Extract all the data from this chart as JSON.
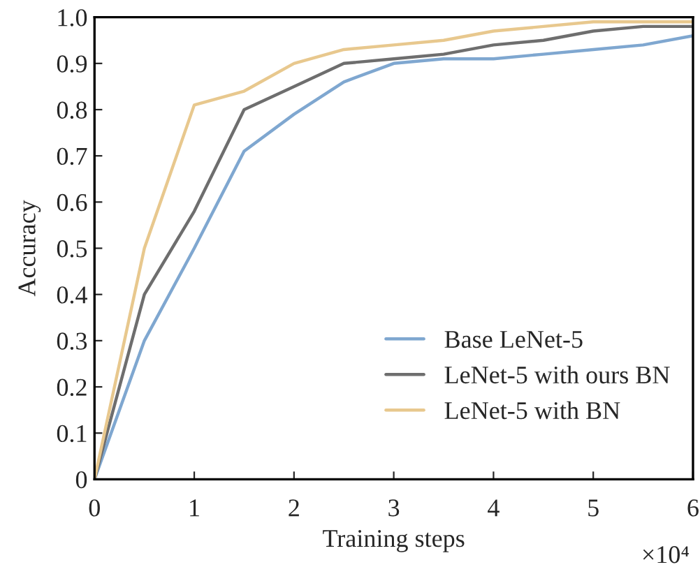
{
  "chart_data": {
    "type": "line",
    "xlabel": "Training steps",
    "ylabel": "Accuracy",
    "x": [
      0,
      0.5,
      1,
      1.5,
      2,
      2.5,
      3,
      3.5,
      4,
      4.5,
      5,
      5.5,
      6
    ],
    "series": [
      {
        "name": "Base LeNet-5",
        "color": "#7fa7d0",
        "values": [
          0,
          0.3,
          0.5,
          0.71,
          0.79,
          0.86,
          0.9,
          0.91,
          0.91,
          0.92,
          0.93,
          0.94,
          0.96
        ]
      },
      {
        "name": "LeNet-5 with ours BN",
        "color": "#6e6e6e",
        "values": [
          0,
          0.4,
          0.58,
          0.8,
          0.85,
          0.9,
          0.91,
          0.92,
          0.94,
          0.95,
          0.97,
          0.98,
          0.98
        ]
      },
      {
        "name": "LeNet-5 with BN",
        "color": "#e8c88e",
        "values": [
          0,
          0.5,
          0.81,
          0.84,
          0.9,
          0.93,
          0.94,
          0.95,
          0.97,
          0.98,
          0.99,
          0.99,
          0.99
        ]
      }
    ],
    "xlim": [
      0,
      6
    ],
    "xticks": [
      0,
      1,
      2,
      3,
      4,
      5,
      6
    ],
    "ylim": [
      0,
      1
    ],
    "yticks": [
      0,
      {
        "value": 0.1,
        "label": "0.1"
      },
      {
        "value": 0.2,
        "label": "0.2"
      },
      {
        "value": 0.3,
        "label": "0.3"
      },
      {
        "value": 0.4,
        "label": "0.4"
      },
      {
        "value": 0.5,
        "label": "0.5"
      },
      {
        "value": 0.6,
        "label": "0.6"
      },
      {
        "value": 0.7,
        "label": "0.7"
      },
      {
        "value": 0.8,
        "label": "0.8"
      },
      {
        "value": 0.9,
        "label": "0.9"
      },
      {
        "value": 1,
        "label": "1.0"
      }
    ],
    "annotations": [
      "×10⁴"
    ],
    "legend": "bottom right",
    "grid": false,
    "line_style": "solid"
  }
}
